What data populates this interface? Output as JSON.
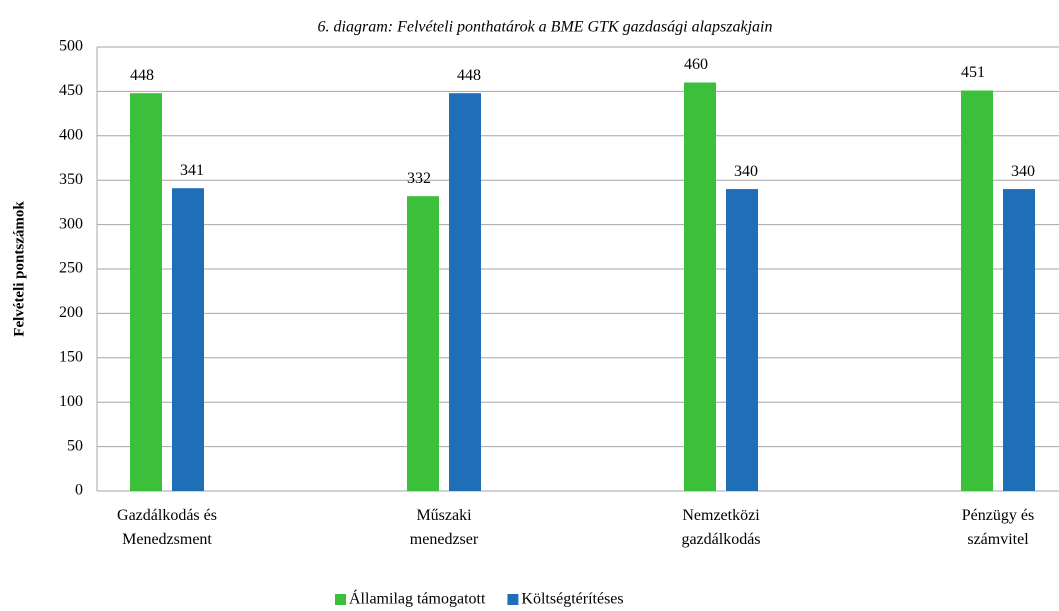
{
  "chart_data": {
    "type": "bar",
    "title": "6. diagram: Felvételi ponthatárok a BME GTK gazdasági alapszakjain",
    "y_label": "Felvételi pontszámok",
    "categories": [
      "Gazdálkodás és Menedzsment",
      "Műszaki menedzser",
      "Nemzetközi gazdálkodás",
      "Pénzügy és számvitel"
    ],
    "series": [
      {
        "name": "Államilag támogatott",
        "color": "#3cbf3a",
        "values": [
          448,
          332,
          460,
          451
        ]
      },
      {
        "name": "Költségtérítéses",
        "color": "#1f6eb8",
        "values": [
          341,
          448,
          340,
          340
        ]
      }
    ],
    "ylim": [
      0,
      500
    ],
    "yticks": [
      0,
      50,
      100,
      150,
      200,
      250,
      300,
      350,
      400,
      450,
      500
    ],
    "grid": true,
    "legend": "bottom"
  }
}
